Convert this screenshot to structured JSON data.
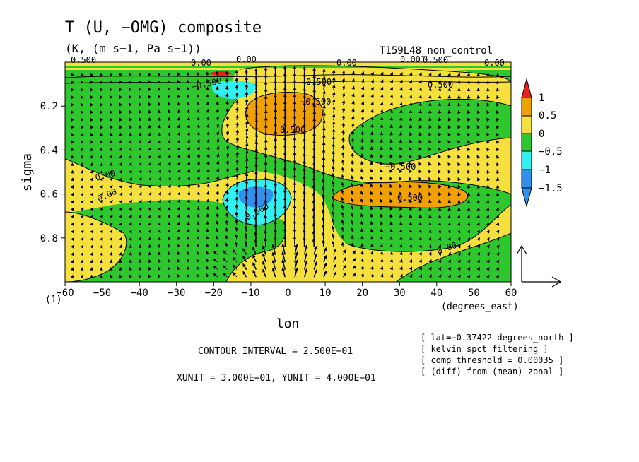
{
  "chart_data": {
    "type": "contour+vector",
    "title": "T (U, −OMG) composite",
    "subtitle": "(K, (m s−1, Pa s−1))",
    "run_label": "T159L48_non_control",
    "xlabel": "lon",
    "x_unit_label": "(degrees_east)",
    "ylabel": "sigma",
    "xlim": [
      -60,
      60
    ],
    "ylim": [
      1.0,
      0.0
    ],
    "x_ticks": [
      -60,
      -50,
      -40,
      -30,
      -20,
      -10,
      0,
      10,
      20,
      30,
      40,
      50,
      60
    ],
    "y_ticks": [
      0.2,
      0.4,
      0.6,
      0.8
    ],
    "corner_label": "(1)",
    "colorbar": {
      "levels": [
        "1",
        "0.5",
        "0",
        "−0.5",
        "−1",
        "−1.5"
      ],
      "colors": [
        "#e8201c",
        "#f0a000",
        "#f5e040",
        "#2ec82e",
        "#30f0f0",
        "#3090f0"
      ]
    },
    "contour_labels": [
      "0.500",
      "0.500",
      "0.00",
      "0.00",
      "0.00",
      "−0.500",
      "0.500",
      "0.500",
      "−0.500",
      "−0.500",
      "0.500",
      "0.00",
      "0.00",
      "0.00",
      "0.00",
      "0.00",
      "0.500",
      "0.500"
    ],
    "contour_interval": "CONTOUR INTERVAL = 2.500E−01",
    "units_text": "XUNIT = 3.000E+01, YUNIT = 4.000E−01",
    "info": [
      "[ lat=−0.37422 degrees_north ]",
      "[ kelvin spct filtering ]",
      "[ comp threshold = 0.00035 ]",
      "[ (diff) from (mean) zonal ]"
    ],
    "colors": {
      "green": "#2ec82e",
      "yellow": "#f5e040",
      "orange": "#f0a000",
      "cyan": "#30f0f0",
      "blue": "#3090f0",
      "red": "#e8201c"
    }
  }
}
